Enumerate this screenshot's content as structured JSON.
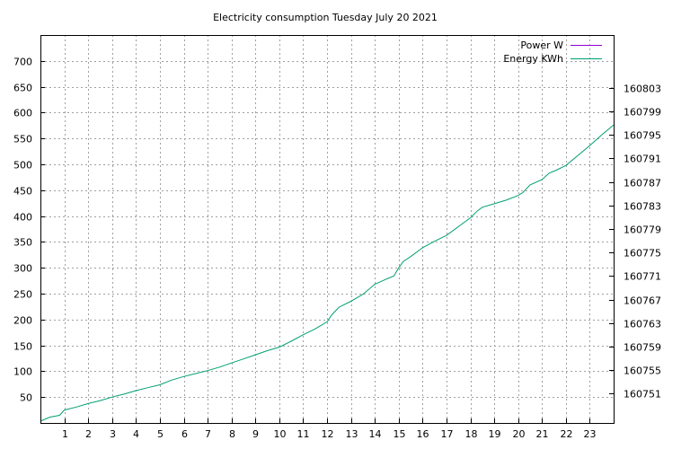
{
  "chart_data": {
    "type": "line",
    "title": "Electricity consumption Tuesday July 20 2021",
    "xlabel": "",
    "ylabel": "",
    "y2label": "",
    "xlim": [
      0,
      24
    ],
    "ylim": [
      0,
      750
    ],
    "y2lim": [
      160746,
      160812
    ],
    "x_ticks": [
      1,
      2,
      3,
      4,
      5,
      6,
      7,
      8,
      9,
      10,
      11,
      12,
      13,
      14,
      15,
      16,
      17,
      18,
      19,
      20,
      21,
      22,
      23
    ],
    "y_ticks": [
      50,
      100,
      150,
      200,
      250,
      300,
      350,
      400,
      450,
      500,
      550,
      600,
      650,
      700
    ],
    "y2_ticks": [
      160751,
      160755,
      160759,
      160763,
      160767,
      160771,
      160775,
      160779,
      160783,
      160787,
      160791,
      160795,
      160799,
      160803
    ],
    "grid": true,
    "legend_position": "top-right",
    "series": [
      {
        "name": "Power W",
        "color": "#9400d3",
        "axis": "y",
        "x": [],
        "values": []
      },
      {
        "name": "Energy KWh",
        "color": "#009e73",
        "axis": "y2",
        "x": [
          0,
          0.4,
          0.8,
          1.0,
          1.5,
          2.0,
          2.5,
          3.0,
          3.5,
          4.0,
          4.5,
          5.0,
          5.5,
          6.0,
          6.5,
          7.0,
          7.5,
          8.0,
          8.5,
          9.0,
          9.5,
          10.0,
          10.5,
          11.0,
          11.5,
          12.0,
          12.2,
          12.5,
          13.0,
          13.5,
          14.0,
          14.5,
          14.8,
          15.0,
          15.2,
          15.5,
          16.0,
          16.5,
          17.0,
          17.5,
          18.0,
          18.3,
          18.5,
          19.0,
          19.5,
          20.0,
          20.2,
          20.5,
          21.0,
          21.3,
          21.6,
          22.0,
          22.5,
          23.0,
          23.5,
          24.0
        ],
        "values": [
          160746.3,
          160747.0,
          160747.3,
          160748.2,
          160748.7,
          160749.3,
          160749.8,
          160750.4,
          160750.9,
          160751.5,
          160752.0,
          160752.5,
          160753.3,
          160753.9,
          160754.4,
          160754.9,
          160755.5,
          160756.2,
          160756.9,
          160757.6,
          160758.3,
          160758.9,
          160759.9,
          160761.0,
          160762.0,
          160763.2,
          160764.4,
          160765.7,
          160766.7,
          160767.9,
          160769.6,
          160770.5,
          160771.0,
          160772.4,
          160773.5,
          160774.3,
          160775.8,
          160776.9,
          160777.9,
          160779.4,
          160780.9,
          160782.1,
          160782.7,
          160783.3,
          160783.9,
          160784.7,
          160785.2,
          160786.5,
          160787.4,
          160788.5,
          160789.0,
          160789.8,
          160791.5,
          160793.2,
          160795.0,
          160796.7
        ]
      }
    ]
  }
}
